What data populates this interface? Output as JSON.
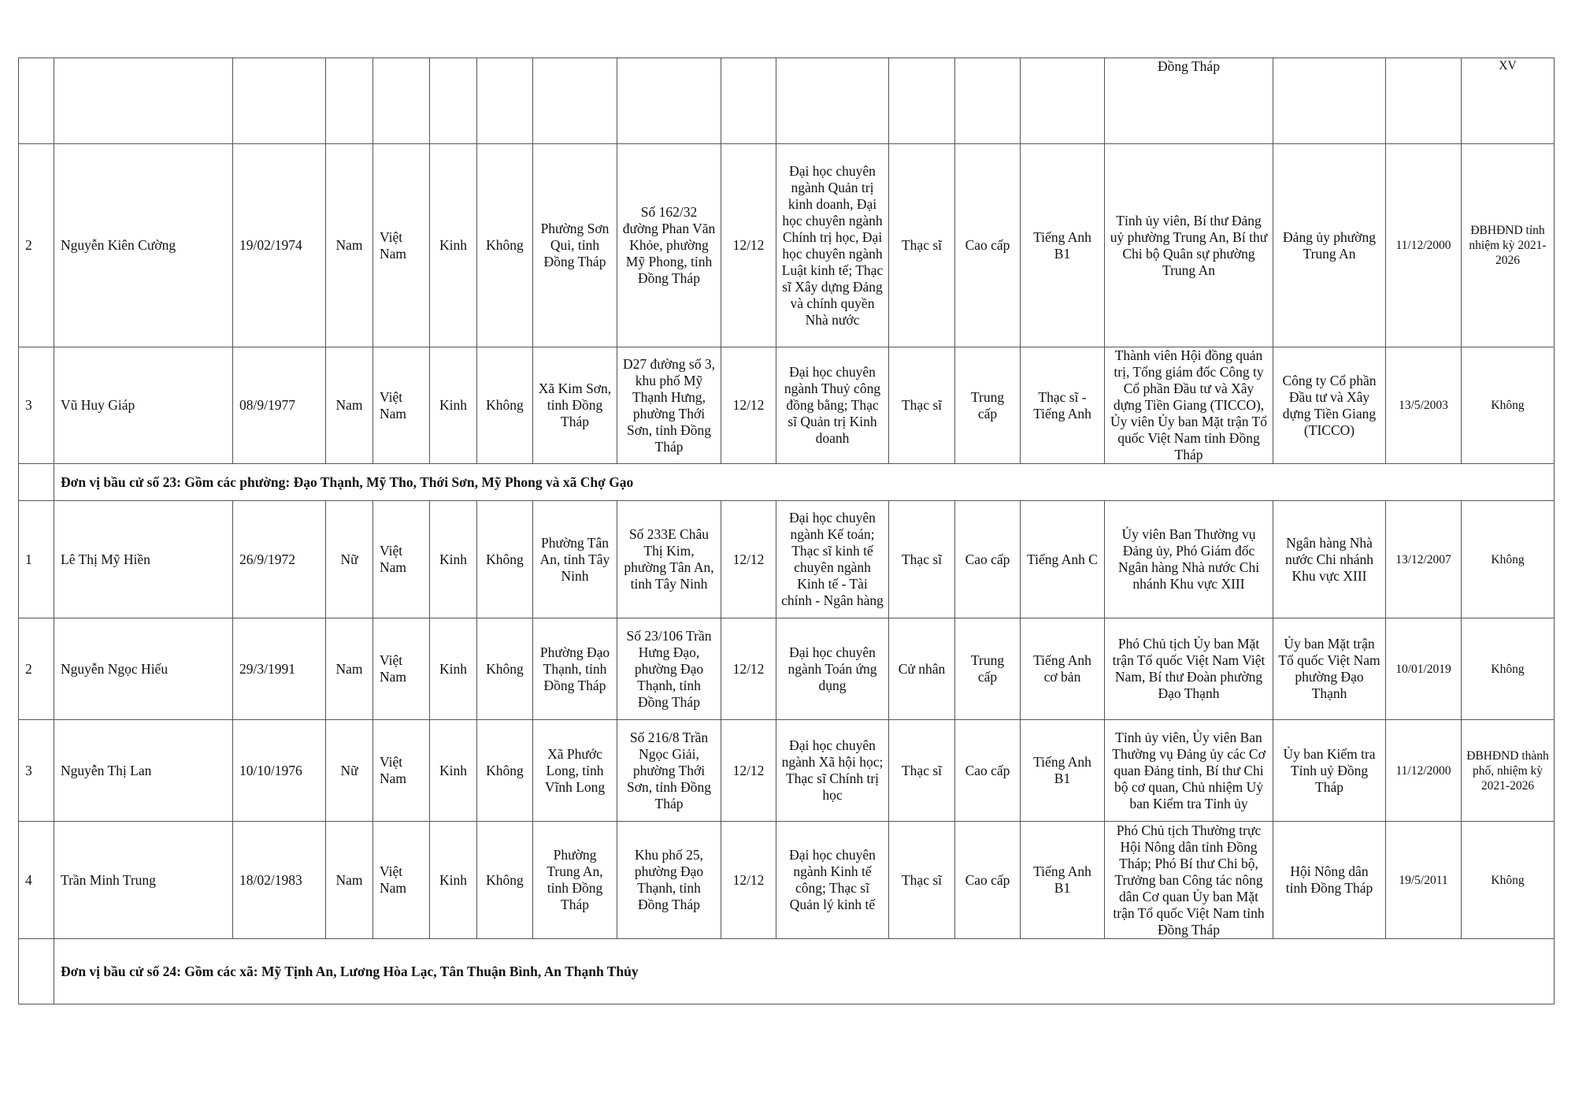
{
  "table": {
    "rows": [
      {
        "type": "person",
        "variant": "top",
        "cells": [
          "",
          "",
          "",
          "",
          "",
          "",
          "",
          "",
          "",
          "",
          "",
          "",
          "",
          "",
          "Đồng Tháp",
          "",
          "",
          "XV"
        ]
      },
      {
        "type": "person",
        "cells": [
          "2",
          "Nguyễn Kiên Cường",
          "19/02/1974",
          "Nam",
          "Việt Nam",
          "Kinh",
          "Không",
          "Phường Sơn Qui, tỉnh Đồng Tháp",
          "Số 162/32 đường Phan Văn Khỏe, phường Mỹ Phong, tỉnh Đồng Tháp",
          "12/12",
          "Đại học chuyên ngành Quản trị kinh doanh, Đại học chuyên ngành Chính trị học, Đại học chuyên ngành Luật kinh tế; Thạc sĩ Xây dựng Đảng và chính quyền Nhà nước",
          "Thạc sĩ",
          "Cao cấp",
          "Tiếng Anh B1",
          "Tỉnh ủy viên, Bí thư Đảng uỷ phường Trung An, Bí thư Chi bộ Quân sự phường Trung An",
          "Đảng ủy phường Trung An",
          "11/12/2000",
          "ĐBHĐND tỉnh nhiệm kỳ 2021-2026"
        ]
      },
      {
        "type": "person",
        "cells": [
          "3",
          "Vũ Huy Giáp",
          "08/9/1977",
          "Nam",
          "Việt Nam",
          "Kinh",
          "Không",
          "Xã Kim Sơn, tỉnh Đồng Tháp",
          "D27 đường số 3, khu phố Mỹ Thạnh Hưng, phường Thới Sơn, tỉnh Đồng Tháp",
          "12/12",
          "Đại học chuyên ngành Thuỷ công đồng bằng; Thạc sĩ Quản trị Kinh doanh",
          "Thạc sĩ",
          "Trung cấp",
          "Thạc sĩ - Tiếng Anh",
          "Thành viên Hội đồng quản trị, Tổng giám đốc Công ty Cổ phần Đầu tư và Xây dựng Tiền Giang (TICCO), Ủy viên Ủy ban Mặt trận Tổ quốc Việt Nam tỉnh Đồng Tháp",
          "Công ty Cổ phần Đầu tư và Xây dựng Tiền Giang (TICCO)",
          "13/5/2003",
          "Không"
        ]
      },
      {
        "type": "section",
        "title": "Đơn vị bầu cử số 23:  Gồm các phường: Đạo Thạnh, Mỹ Tho, Thới Sơn, Mỹ Phong và xã Chợ Gạo"
      },
      {
        "type": "person",
        "cells": [
          "1",
          "Lê Thị Mỹ Hiền",
          "26/9/1972",
          "Nữ",
          "Việt Nam",
          "Kinh",
          "Không",
          "Phường Tân An, tỉnh Tây Ninh",
          "Số 233E Châu Thị Kim, phường Tân An, tỉnh Tây Ninh",
          "12/12",
          "Đại học chuyên ngành Kế toán; Thạc sĩ  kinh tế chuyên ngành Kinh tế - Tài chính - Ngân hàng",
          "Thạc sĩ",
          "Cao cấp",
          "Tiếng Anh C",
          "Ủy viên Ban Thường vụ Đảng ủy, Phó Giám đốc Ngân hàng Nhà nước Chi nhánh Khu vực XIII",
          "Ngân hàng Nhà nước Chi nhánh Khu vực XIII",
          "13/12/2007",
          "Không"
        ]
      },
      {
        "type": "person",
        "cells": [
          "2",
          "Nguyễn Ngọc Hiếu",
          "29/3/1991",
          "Nam",
          "Việt Nam",
          "Kinh",
          "Không",
          "Phường Đạo Thạnh, tỉnh Đồng Tháp",
          "Số 23/106 Trần Hưng Đạo, phường Đạo Thạnh, tỉnh Đồng Tháp",
          "12/12",
          "Đại học chuyên ngành Toán ứng dụng",
          "Cử nhân",
          "Trung cấp",
          "Tiếng Anh cơ bản",
          "Phó Chủ tịch Ủy ban Mặt trận Tổ quốc Việt Nam Việt Nam, Bí thư Đoàn phường Đạo Thạnh",
          "Ủy ban Mặt trận Tổ quốc Việt Nam phường Đạo Thạnh",
          "10/01/2019",
          "Không"
        ]
      },
      {
        "type": "person",
        "cells": [
          "3",
          "Nguyễn Thị Lan",
          "10/10/1976",
          "Nữ",
          "Việt Nam",
          "Kinh",
          "Không",
          "Xã Phước Long, tỉnh Vĩnh Long",
          "Số 216/8 Trần Ngọc Giải, phường Thới Sơn, tỉnh Đồng Tháp",
          "12/12",
          "Đại học chuyên ngành Xã hội học; Thạc sĩ Chính trị học",
          "Thạc sĩ",
          "Cao cấp",
          "Tiếng Anh B1",
          "Tỉnh ủy viên, Ủy viên Ban Thường vụ Đảng ủy các Cơ quan Đảng tỉnh, Bí thư Chi bộ cơ quan, Chủ nhiệm Uỷ ban Kiểm tra Tỉnh ủy",
          "Ủy ban Kiểm tra Tỉnh uỷ Đồng Tháp",
          "11/12/2000",
          "ĐBHĐND thành phố, nhiệm kỳ 2021-2026"
        ]
      },
      {
        "type": "person",
        "cells": [
          "4",
          "Trần Minh Trung",
          "18/02/1983",
          "Nam",
          "Việt Nam",
          "Kinh",
          "Không",
          "Phường Trung An, tỉnh Đồng Tháp",
          "Khu phố 25, phường Đạo Thạnh, tỉnh Đồng Tháp",
          "12/12",
          "Đại học chuyên ngành Kinh tế công; Thạc sĩ Quản lý kinh tế",
          "Thạc sĩ",
          "Cao cấp",
          "Tiếng Anh B1",
          "Phó Chủ tịch Thường trực Hội Nông dân tỉnh Đồng Tháp; Phó Bí thư Chi bộ, Trưởng ban Công tác nông dân Cơ quan Ủy ban Mặt trận Tổ quốc Việt Nam tỉnh Đồng Tháp",
          "Hội Nông dân tỉnh Đồng Tháp",
          "19/5/2011",
          "Không"
        ]
      },
      {
        "type": "section",
        "title": "Đơn vị bầu cử số 24:  Gồm các xã: Mỹ Tịnh An, Lương Hòa Lạc, Tân Thuận Bình, An Thạnh Thủy"
      }
    ]
  }
}
